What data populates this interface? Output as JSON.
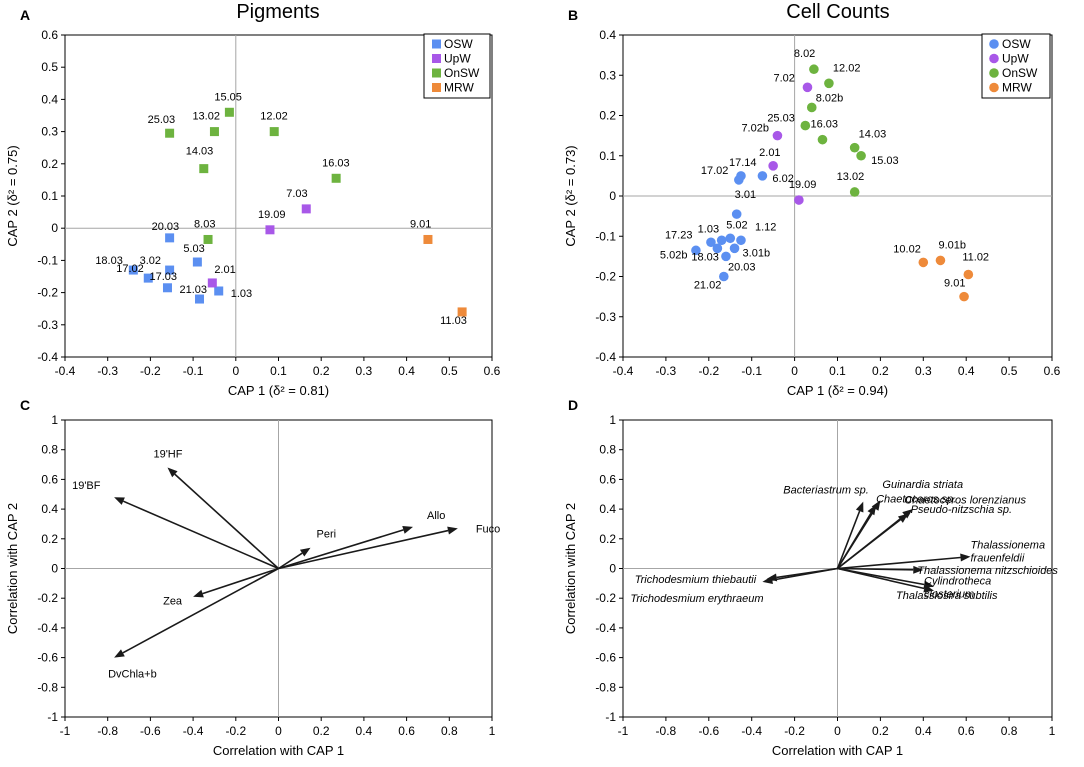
{
  "colors": {
    "OSW": "#5b8ff1",
    "UpW": "#a858e8",
    "OnSW": "#6db33f",
    "MRW": "#ee8a3a",
    "arrow": "#1a1a1a"
  },
  "chart_data": [
    {
      "panel": "A",
      "type": "scatter",
      "marker": "square",
      "title": "Pigments",
      "xlabel": "CAP 1 (δ² = 0.81)",
      "ylabel": "CAP 2 (δ² = 0.75)",
      "xlim": [
        -0.4,
        0.6
      ],
      "ylim": [
        -0.4,
        0.6
      ],
      "xticks": [
        "-0.4",
        "-0.3",
        "-0.2",
        "-0.1",
        "0",
        "0.1",
        "0.2",
        "0.3",
        "0.4",
        "0.5",
        "0.6"
      ],
      "yticks": [
        "-0.4",
        "-0.3",
        "-0.2",
        "-0.1",
        "0",
        "0.1",
        "0.2",
        "0.3",
        "0.4",
        "0.5",
        "0.6"
      ],
      "legend": [
        "OSW",
        "UpW",
        "OnSW",
        "MRW"
      ],
      "legend_position": "top-right",
      "points": [
        {
          "label": "20.03",
          "group": "OSW",
          "x": -0.155,
          "y": -0.03
        },
        {
          "label": "3.02",
          "group": "OSW",
          "x": -0.155,
          "y": -0.13
        },
        {
          "label": "5.03",
          "group": "OSW",
          "x": -0.09,
          "y": -0.105
        },
        {
          "label": "18.03",
          "group": "OSW",
          "x": -0.24,
          "y": -0.13
        },
        {
          "label": "17.02",
          "group": "OSW",
          "x": -0.205,
          "y": -0.155
        },
        {
          "label": "17.03",
          "group": "OSW",
          "x": -0.16,
          "y": -0.185
        },
        {
          "label": "21.03",
          "group": "OSW",
          "x": -0.085,
          "y": -0.22
        },
        {
          "label": "1.03",
          "group": "OSW",
          "x": -0.04,
          "y": -0.195
        },
        {
          "label": "2.01",
          "group": "UpW",
          "x": -0.055,
          "y": -0.17
        },
        {
          "label": "19.09",
          "group": "UpW",
          "x": 0.08,
          "y": -0.005
        },
        {
          "label": "7.03",
          "group": "UpW",
          "x": 0.165,
          "y": 0.06
        },
        {
          "label": "25.03",
          "group": "OnSW",
          "x": -0.155,
          "y": 0.295
        },
        {
          "label": "13.02",
          "group": "OnSW",
          "x": -0.05,
          "y": 0.3
        },
        {
          "label": "15.05",
          "group": "OnSW",
          "x": -0.015,
          "y": 0.36
        },
        {
          "label": "14.03",
          "group": "OnSW",
          "x": -0.075,
          "y": 0.185
        },
        {
          "label": "8.03",
          "group": "OnSW",
          "x": -0.065,
          "y": -0.035
        },
        {
          "label": "12.02",
          "group": "OnSW",
          "x": 0.09,
          "y": 0.3
        },
        {
          "label": "16.03",
          "group": "OnSW",
          "x": 0.235,
          "y": 0.155
        },
        {
          "label": "9.01",
          "group": "MRW",
          "x": 0.45,
          "y": -0.035
        },
        {
          "label": "11.03",
          "group": "MRW",
          "x": 0.53,
          "y": -0.26
        }
      ]
    },
    {
      "panel": "B",
      "type": "scatter",
      "marker": "circle",
      "title": "Cell Counts",
      "xlabel": "CAP 1 (δ² = 0.94)",
      "ylabel": "CAP 2 (δ² = 0.73)",
      "xlim": [
        -0.4,
        0.6
      ],
      "ylim": [
        -0.4,
        0.4
      ],
      "xticks": [
        "-0.4",
        "-0.3",
        "-0.2",
        "-0.1",
        "0",
        "0.1",
        "0.2",
        "0.3",
        "0.4",
        "0.5",
        "0.6"
      ],
      "yticks": [
        "-0.4",
        "-0.3",
        "-0.2",
        "-0.1",
        "0",
        "0.1",
        "0.2",
        "0.3",
        "0.4"
      ],
      "legend": [
        "OSW",
        "UpW",
        "OnSW",
        "MRW"
      ],
      "legend_position": "top-right",
      "points": [
        {
          "label": "17.14",
          "group": "OSW",
          "x": -0.125,
          "y": 0.05
        },
        {
          "label": "17.02",
          "group": "OSW",
          "x": -0.13,
          "y": 0.04
        },
        {
          "label": "6.02",
          "group": "OSW",
          "x": -0.075,
          "y": 0.05
        },
        {
          "label": "3.01",
          "group": "OSW",
          "x": -0.135,
          "y": -0.045
        },
        {
          "label": "1.03",
          "group": "OSW",
          "x": -0.17,
          "y": -0.11
        },
        {
          "label": "5.02",
          "group": "OSW",
          "x": -0.15,
          "y": -0.105
        },
        {
          "label": "1.12",
          "group": "OSW",
          "x": -0.125,
          "y": -0.11
        },
        {
          "label": "17.23",
          "group": "OSW",
          "x": -0.195,
          "y": -0.115
        },
        {
          "label": "3.01b",
          "group": "OSW",
          "x": -0.14,
          "y": -0.13
        },
        {
          "label": "5.02b",
          "group": "OSW",
          "x": -0.23,
          "y": -0.135
        },
        {
          "label": "18.03",
          "group": "OSW",
          "x": -0.18,
          "y": -0.13
        },
        {
          "label": "20.03",
          "group": "OSW",
          "x": -0.16,
          "y": -0.15
        },
        {
          "label": "21.02",
          "group": "OSW",
          "x": -0.165,
          "y": -0.2
        },
        {
          "label": "7.02",
          "group": "UpW",
          "x": 0.03,
          "y": 0.27
        },
        {
          "label": "7.02b",
          "group": "UpW",
          "x": -0.04,
          "y": 0.15
        },
        {
          "label": "2.01",
          "group": "UpW",
          "x": -0.05,
          "y": 0.075
        },
        {
          "label": "19.09",
          "group": "UpW",
          "x": 0.01,
          "y": -0.01
        },
        {
          "label": "8.02",
          "group": "OnSW",
          "x": 0.045,
          "y": 0.315
        },
        {
          "label": "12.02",
          "group": "OnSW",
          "x": 0.08,
          "y": 0.28
        },
        {
          "label": "8.02b",
          "group": "OnSW",
          "x": 0.04,
          "y": 0.22
        },
        {
          "label": "25.03",
          "group": "OnSW",
          "x": 0.025,
          "y": 0.175
        },
        {
          "label": "16.03",
          "group": "OnSW",
          "x": 0.065,
          "y": 0.14
        },
        {
          "label": "14.03",
          "group": "OnSW",
          "x": 0.14,
          "y": 0.12
        },
        {
          "label": "15.03",
          "group": "OnSW",
          "x": 0.155,
          "y": 0.1
        },
        {
          "label": "13.02",
          "group": "OnSW",
          "x": 0.14,
          "y": 0.01
        },
        {
          "label": "10.02",
          "group": "MRW",
          "x": 0.3,
          "y": -0.165
        },
        {
          "label": "9.01b",
          "group": "MRW",
          "x": 0.34,
          "y": -0.16
        },
        {
          "label": "11.02",
          "group": "MRW",
          "x": 0.405,
          "y": -0.195
        },
        {
          "label": "9.01",
          "group": "MRW",
          "x": 0.395,
          "y": -0.25
        }
      ]
    },
    {
      "panel": "C",
      "type": "biplot",
      "xlabel": "Correlation with CAP 1",
      "ylabel": "Correlation with CAP 2",
      "xlim": [
        -1,
        1
      ],
      "ylim": [
        -1,
        1
      ],
      "xticks": [
        "-1",
        "-0.8",
        "-0.6",
        "-0.4",
        "-0.2",
        "0",
        "0.2",
        "0.4",
        "0.6",
        "0.8",
        "1"
      ],
      "yticks": [
        "-1",
        "-0.8",
        "-0.6",
        "-0.4",
        "-0.2",
        "0",
        "0.2",
        "0.4",
        "0.6",
        "0.8",
        "1"
      ],
      "vectors": [
        {
          "label": "19'HF",
          "x": -0.52,
          "y": 0.68,
          "italic": false
        },
        {
          "label": "19'BF",
          "x": -0.77,
          "y": 0.48,
          "italic": false
        },
        {
          "label": "Peri",
          "x": 0.15,
          "y": 0.14,
          "italic": false
        },
        {
          "label": "Allo",
          "x": 0.63,
          "y": 0.28,
          "italic": false
        },
        {
          "label": "Fuco",
          "x": 0.84,
          "y": 0.27,
          "italic": false
        },
        {
          "label": "Zea",
          "x": -0.4,
          "y": -0.19,
          "italic": false
        },
        {
          "label": "DvChla+b",
          "x": -0.77,
          "y": -0.6,
          "italic": false
        }
      ]
    },
    {
      "panel": "D",
      "type": "biplot",
      "xlabel": "Correlation with CAP 1",
      "ylabel": "Correlation with CAP 2",
      "xlim": [
        -1,
        1
      ],
      "ylim": [
        -1,
        1
      ],
      "xticks": [
        "-1",
        "-0.8",
        "-0.6",
        "-0.4",
        "-0.2",
        "0",
        "0.2",
        "0.4",
        "0.6",
        "0.8",
        "1"
      ],
      "yticks": [
        "-1",
        "-0.8",
        "-0.6",
        "-0.4",
        "-0.2",
        "0",
        "0.2",
        "0.4",
        "0.6",
        "0.8",
        "1"
      ],
      "vectors": [
        {
          "label": "Bacteriastrum sp.",
          "x": 0.12,
          "y": 0.45,
          "italic": true
        },
        {
          "label": "Guinardia striata",
          "x": 0.2,
          "y": 0.46,
          "italic": true
        },
        {
          "label": "Chaetoceros sp.",
          "x": 0.18,
          "y": 0.43,
          "italic": true
        },
        {
          "label": "Chaetoceros lorenzianus",
          "x": 0.33,
          "y": 0.37,
          "italic": true
        },
        {
          "label": "Pseudo-nitzschia sp.",
          "x": 0.35,
          "y": 0.4,
          "italic": true
        },
        {
          "label": "Thalassionema frauenfeldii",
          "x": 0.62,
          "y": 0.08,
          "italic": true
        },
        {
          "label": "Thalassionema nitzschioides",
          "x": 0.4,
          "y": -0.01,
          "italic": true
        },
        {
          "label": "Cylindrotheca closterium",
          "x": 0.45,
          "y": -0.12,
          "italic": true
        },
        {
          "label": "Thalassiosira subtilis",
          "x": 0.45,
          "y": -0.15,
          "italic": true
        },
        {
          "label": "Trichodesmium thiebautii",
          "x": -0.33,
          "y": -0.07,
          "italic": true
        },
        {
          "label": "Trichodesmium erythraeum",
          "x": -0.35,
          "y": -0.09,
          "italic": true
        }
      ]
    }
  ]
}
